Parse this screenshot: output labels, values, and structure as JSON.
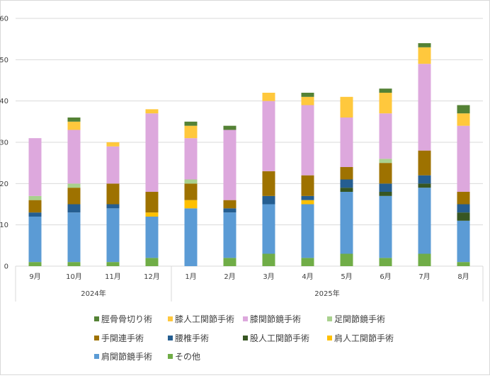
{
  "chart_data": {
    "type": "bar",
    "stacked": true,
    "ylim": [
      0,
      60
    ],
    "yticks": [
      0,
      10,
      20,
      30,
      40,
      50,
      60
    ],
    "grid": true,
    "legend_position": "bottom",
    "categories": [
      "9月",
      "10月",
      "11月",
      "12月",
      "1月",
      "2月",
      "3月",
      "4月",
      "5月",
      "6月",
      "7月",
      "8月"
    ],
    "year_groups": [
      {
        "label": "2024年",
        "start": 0,
        "end": 3
      },
      {
        "label": "2025年",
        "start": 4,
        "end": 11
      }
    ],
    "series": [
      {
        "name": "その他",
        "color": "#70AD47",
        "values": [
          1,
          1,
          1,
          2,
          0,
          2,
          3,
          2,
          3,
          2,
          3,
          1
        ]
      },
      {
        "name": "肩関節鏡手術",
        "color": "#5B9BD5",
        "values": [
          11,
          12,
          13,
          10,
          14,
          11,
          12,
          13,
          15,
          15,
          16,
          10
        ]
      },
      {
        "name": "肩人工関節手術",
        "color": "#FFC000",
        "values": [
          0,
          0,
          0,
          1,
          2,
          0,
          0,
          1,
          0,
          0,
          0,
          0
        ]
      },
      {
        "name": "股人工関節手術",
        "color": "#375623",
        "values": [
          0,
          0,
          0,
          0,
          0,
          0,
          0,
          0,
          1,
          1,
          1,
          2
        ]
      },
      {
        "name": "腰椎手術",
        "color": "#255E91",
        "values": [
          1,
          2,
          1,
          0,
          0,
          1,
          2,
          1,
          2,
          2,
          2,
          2
        ]
      },
      {
        "name": "手関連手術",
        "color": "#9E7200",
        "values": [
          3,
          4,
          5,
          5,
          4,
          2,
          6,
          5,
          3,
          5,
          6,
          3
        ]
      },
      {
        "name": "足関節鏡手術",
        "color": "#A9D18E",
        "values": [
          1,
          1,
          0,
          0,
          1,
          0,
          0,
          0,
          0,
          1,
          0,
          0
        ]
      },
      {
        "name": "膝関節鏡手術",
        "color": "#DDA8DD",
        "values": [
          14,
          13,
          9,
          19,
          10,
          17,
          17,
          17,
          12,
          11,
          21,
          16
        ]
      },
      {
        "name": "膝人工関節手術",
        "color": "#FFC83D",
        "values": [
          0,
          2,
          1,
          1,
          3,
          0,
          2,
          2,
          5,
          5,
          4,
          3
        ]
      },
      {
        "name": "脛骨骨切り術",
        "color": "#548235",
        "values": [
          0,
          1,
          0,
          0,
          1,
          1,
          0,
          1,
          0,
          1,
          1,
          2
        ]
      }
    ],
    "legend_order": [
      "脛骨骨切り術",
      "膝人工関節手術",
      "膝関節鏡手術",
      "足関節鏡手術",
      "手関連手術",
      "腰椎手術",
      "股人工関節手術",
      "肩人工関節手術",
      "肩関節鏡手術",
      "その他"
    ]
  }
}
